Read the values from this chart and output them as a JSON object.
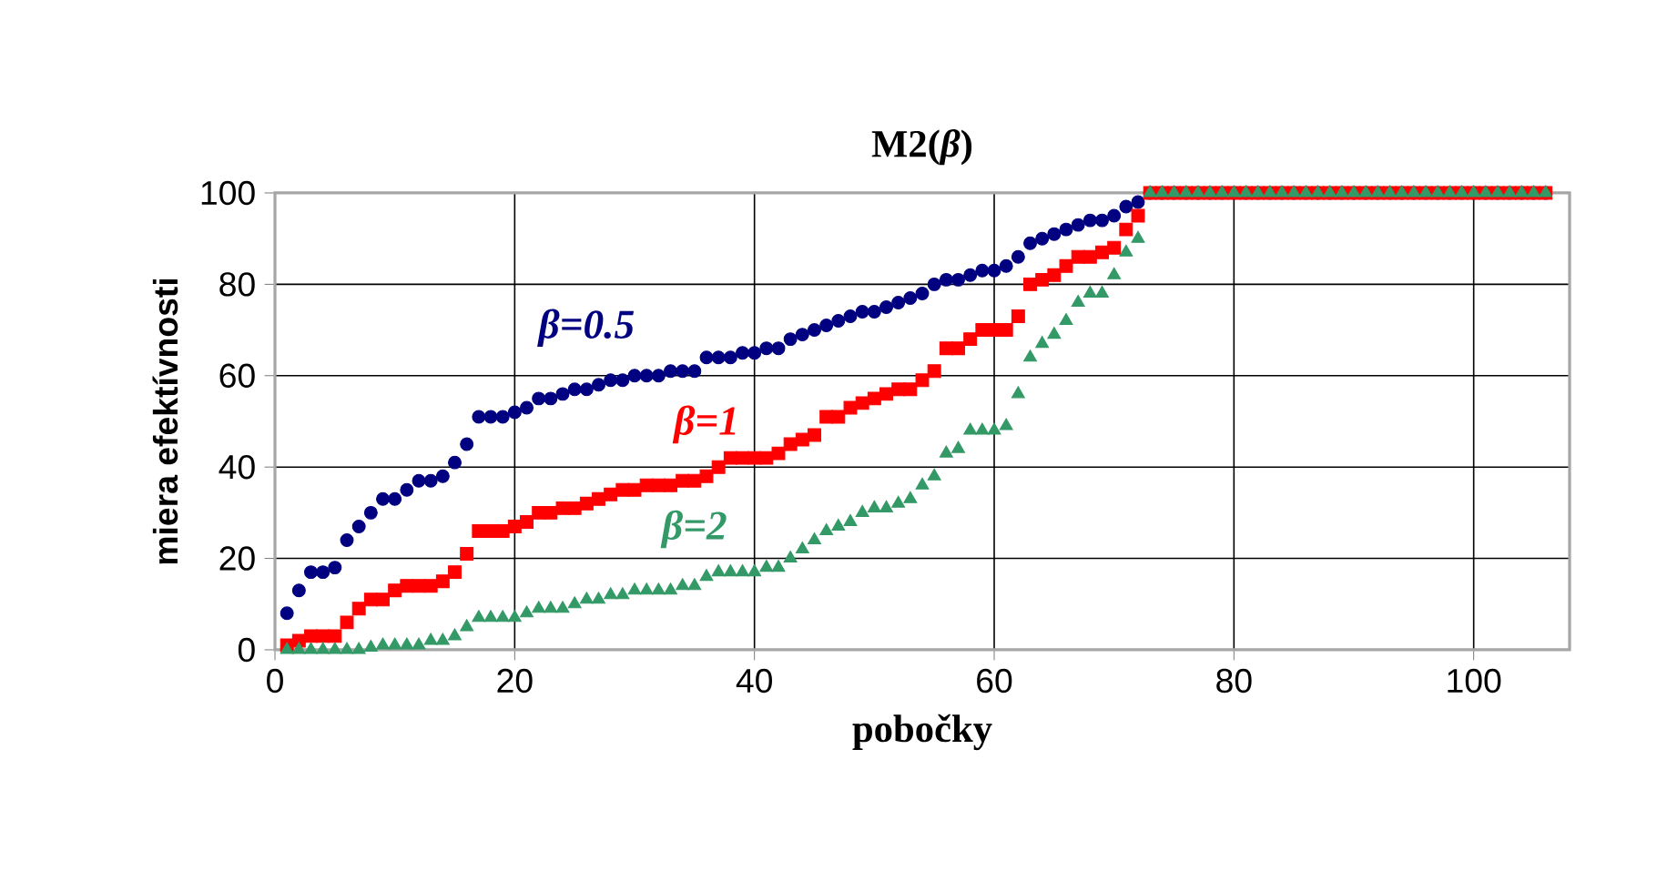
{
  "chart_data": {
    "type": "scatter",
    "title": "M2(*β*)",
    "xlabel": "pobočky",
    "ylabel": "miera efektívnosti",
    "xlim": [
      0,
      108
    ],
    "ylim": [
      0,
      100
    ],
    "xticks": [
      0,
      20,
      40,
      60,
      80,
      100
    ],
    "yticks": [
      0,
      20,
      40,
      60,
      80,
      100
    ],
    "grid": true,
    "x": [
      1,
      2,
      3,
      4,
      5,
      6,
      7,
      8,
      9,
      10,
      11,
      12,
      13,
      14,
      15,
      16,
      17,
      18,
      19,
      20,
      21,
      22,
      23,
      24,
      25,
      26,
      27,
      28,
      29,
      30,
      31,
      32,
      33,
      34,
      35,
      36,
      37,
      38,
      39,
      40,
      41,
      42,
      43,
      44,
      45,
      46,
      47,
      48,
      49,
      50,
      51,
      52,
      53,
      54,
      55,
      56,
      57,
      58,
      59,
      60,
      61,
      62,
      63,
      64,
      65,
      66,
      67,
      68,
      69,
      70,
      71,
      72,
      73,
      74,
      75,
      76,
      77,
      78,
      79,
      80,
      81,
      82,
      83,
      84,
      85,
      86,
      87,
      88,
      89,
      90,
      91,
      92,
      93,
      94,
      95,
      96,
      97,
      98,
      99,
      100,
      101,
      102,
      103,
      104,
      105,
      106
    ],
    "series": [
      {
        "name": "β=0.5",
        "color": "#000080",
        "marker": "circle",
        "values": [
          8,
          13,
          17,
          17,
          18,
          24,
          27,
          30,
          33,
          33,
          35,
          37,
          37,
          38,
          41,
          45,
          51,
          51,
          51,
          52,
          53,
          55,
          55,
          56,
          57,
          57,
          58,
          59,
          59,
          60,
          60,
          60,
          61,
          61,
          61,
          64,
          64,
          64,
          65,
          65,
          66,
          66,
          68,
          69,
          70,
          71,
          72,
          73,
          74,
          74,
          75,
          76,
          77,
          78,
          80,
          81,
          81,
          82,
          83,
          83,
          84,
          86,
          89,
          90,
          91,
          92,
          93,
          94,
          94,
          95,
          97,
          98,
          100,
          100,
          100,
          100,
          100,
          100,
          100,
          100,
          100,
          100,
          100,
          100,
          100,
          100,
          100,
          100,
          100,
          100,
          100,
          100,
          100,
          100,
          100,
          100,
          100,
          100,
          100,
          100,
          100,
          100,
          100,
          100,
          100,
          100
        ]
      },
      {
        "name": "β=1",
        "color": "#ff0000",
        "marker": "square",
        "values": [
          1,
          2,
          3,
          3,
          3,
          6,
          9,
          11,
          11,
          13,
          14,
          14,
          14,
          15,
          17,
          21,
          26,
          26,
          26,
          27,
          28,
          30,
          30,
          31,
          31,
          32,
          33,
          34,
          35,
          35,
          36,
          36,
          36,
          37,
          37,
          38,
          40,
          42,
          42,
          42,
          42,
          43,
          45,
          46,
          47,
          51,
          51,
          53,
          54,
          55,
          56,
          57,
          57,
          59,
          61,
          66,
          66,
          68,
          70,
          70,
          70,
          73,
          80,
          81,
          82,
          84,
          86,
          86,
          87,
          88,
          92,
          95,
          100,
          100,
          100,
          100,
          100,
          100,
          100,
          100,
          100,
          100,
          100,
          100,
          100,
          100,
          100,
          100,
          100,
          100,
          100,
          100,
          100,
          100,
          100,
          100,
          100,
          100,
          100,
          100,
          100,
          100,
          100,
          100,
          100,
          100
        ]
      },
      {
        "name": "β=2",
        "color": "#339966",
        "marker": "triangle",
        "values": [
          0,
          0,
          0,
          0,
          0,
          0,
          0,
          0.5,
          1,
          1,
          1,
          1,
          2,
          2,
          3,
          5,
          7,
          7,
          7,
          7,
          8,
          9,
          9,
          9,
          10,
          11,
          11,
          12,
          12,
          13,
          13,
          13,
          13,
          14,
          14,
          16,
          17,
          17,
          17,
          17,
          18,
          18,
          20,
          22,
          24,
          26,
          27,
          28,
          30,
          31,
          31,
          32,
          33,
          36,
          38,
          43,
          44,
          48,
          48,
          48,
          49,
          56,
          64,
          67,
          69,
          72,
          76,
          78,
          78,
          82,
          87,
          90,
          100,
          100,
          100,
          100,
          100,
          100,
          100,
          100,
          100,
          100,
          100,
          100,
          100,
          100,
          100,
          100,
          100,
          100,
          100,
          100,
          100,
          100,
          100,
          100,
          100,
          100,
          100,
          100,
          100,
          100,
          100,
          100,
          100,
          100
        ]
      }
    ]
  }
}
